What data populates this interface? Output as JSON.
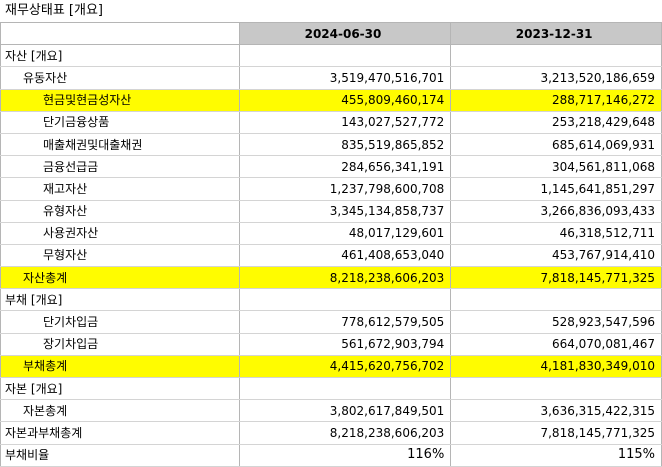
{
  "title": "재무상태표 [개요]",
  "columns": [
    "2024-06-30",
    "2023-12-31"
  ],
  "rows": [
    {
      "label": "자산 [개요]",
      "v1": "",
      "v2": "",
      "indent": 0,
      "highlight": false
    },
    {
      "label": "유동자산",
      "v1": "3,519,470,516,701",
      "v2": "3,213,520,186,659",
      "indent": 1,
      "highlight": false
    },
    {
      "label": "현금및현금성자산",
      "v1": "455,809,460,174",
      "v2": "288,717,146,272",
      "indent": 2,
      "highlight": true
    },
    {
      "label": "단기금융상품",
      "v1": "143,027,527,772",
      "v2": "253,218,429,648",
      "indent": 2,
      "highlight": false
    },
    {
      "label": "매출채권및대출채권",
      "v1": "835,519,865,852",
      "v2": "685,614,069,931",
      "indent": 2,
      "highlight": false
    },
    {
      "label": "금융선급금",
      "v1": "284,656,341,191",
      "v2": "304,561,811,068",
      "indent": 2,
      "highlight": false
    },
    {
      "label": "재고자산",
      "v1": "1,237,798,600,708",
      "v2": "1,145,641,851,297",
      "indent": 2,
      "highlight": false
    },
    {
      "label": "유형자산",
      "v1": "3,345,134,858,737",
      "v2": "3,266,836,093,433",
      "indent": 2,
      "highlight": false
    },
    {
      "label": "사용권자산",
      "v1": "48,017,129,601",
      "v2": "46,318,512,711",
      "indent": 2,
      "highlight": false
    },
    {
      "label": "무형자산",
      "v1": "461,408,653,040",
      "v2": "453,767,914,410",
      "indent": 2,
      "highlight": false
    },
    {
      "label": "자산총계",
      "v1": "8,218,238,606,203",
      "v2": "7,818,145,771,325",
      "indent": 1,
      "highlight": true
    },
    {
      "label": "부채 [개요]",
      "v1": "",
      "v2": "",
      "indent": 0,
      "highlight": false
    },
    {
      "label": "단기차입금",
      "v1": "778,612,579,505",
      "v2": "528,923,547,596",
      "indent": 2,
      "highlight": false
    },
    {
      "label": "장기차입금",
      "v1": "561,672,903,794",
      "v2": "664,070,081,467",
      "indent": 2,
      "highlight": false
    },
    {
      "label": "부채총계",
      "v1": "4,415,620,756,702",
      "v2": "4,181,830,349,010",
      "indent": 1,
      "highlight": true
    },
    {
      "label": "자본 [개요]",
      "v1": "",
      "v2": "",
      "indent": 0,
      "highlight": false
    },
    {
      "label": "자본총계",
      "v1": "3,802,617,849,501",
      "v2": "3,636,315,422,315",
      "indent": 1,
      "highlight": false
    },
    {
      "label": "자본과부채총계",
      "v1": "8,218,238,606,203",
      "v2": "7,818,145,771,325",
      "indent": 0,
      "highlight": false
    },
    {
      "label": "부채비율",
      "v1": "116%",
      "v2": "115%",
      "indent": 0,
      "highlight": false
    }
  ]
}
